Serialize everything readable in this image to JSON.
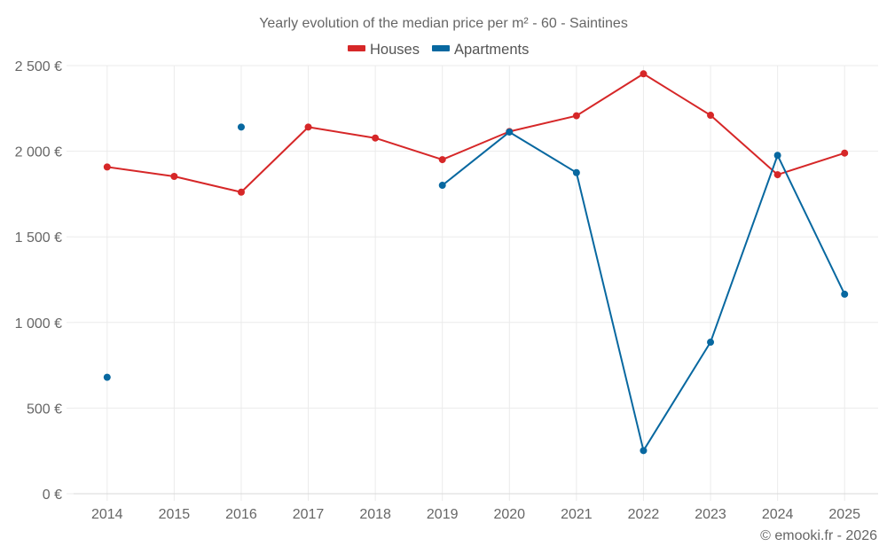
{
  "chart_data": {
    "type": "line",
    "title": "Yearly evolution of the median price per m² - 60 - Saintines",
    "xlabel": "",
    "ylabel": "",
    "categories": [
      "2014",
      "2015",
      "2016",
      "2017",
      "2018",
      "2019",
      "2020",
      "2021",
      "2022",
      "2023",
      "2024",
      "2025"
    ],
    "y_ticks": [
      0,
      500,
      1000,
      1500,
      2000,
      2500
    ],
    "y_tick_labels": [
      "0 €",
      "500 €",
      "1 000 €",
      "1 500 €",
      "2 000 €",
      "2 500 €"
    ],
    "ylim": [
      0,
      2500
    ],
    "grid": true,
    "legend_position": "top-center",
    "series": [
      {
        "name": "Houses",
        "color": "#d62728",
        "values": [
          1908,
          1853,
          1761,
          2141,
          2077,
          1951,
          2115,
          2207,
          2452,
          2210,
          1863,
          1989
        ]
      },
      {
        "name": "Apartments",
        "color": "#0868a0",
        "values": [
          680,
          null,
          2141,
          null,
          null,
          1801,
          2112,
          1875,
          252,
          885,
          1976,
          1165
        ]
      }
    ],
    "credit": "© emooki.fr - 2026"
  }
}
